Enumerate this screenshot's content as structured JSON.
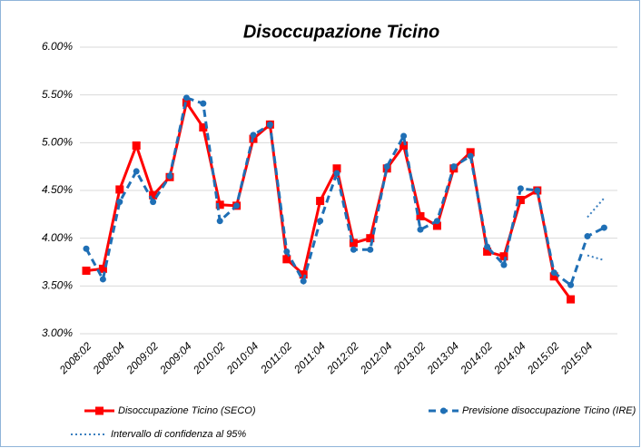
{
  "chart_data": {
    "type": "line",
    "title": "Disoccupazione Ticino",
    "categories": [
      "2008:02",
      null,
      "2008:04",
      null,
      "2009:02",
      null,
      "2009:04",
      null,
      "2010:02",
      null,
      "2010:04",
      null,
      "2011:02",
      null,
      "2011:04",
      null,
      "2012:02",
      null,
      "2012:04",
      null,
      "2013:02",
      null,
      "2013:04",
      null,
      "2014:02",
      null,
      "2014:04",
      null,
      "2015:02",
      null,
      "2015:04",
      null
    ],
    "series": [
      {
        "name": "Disoccupazione Ticino (SECO)",
        "color": "#ff0000",
        "style": "solid",
        "marker": "square",
        "values": [
          3.66,
          3.68,
          4.51,
          4.97,
          4.45,
          4.64,
          5.42,
          5.16,
          4.35,
          4.34,
          5.04,
          5.19,
          3.78,
          3.62,
          4.39,
          4.73,
          3.95,
          4.0,
          4.73,
          4.97,
          4.23,
          4.13,
          4.73,
          4.9,
          3.86,
          3.81,
          4.4,
          4.5,
          3.6,
          3.36,
          null,
          null
        ]
      },
      {
        "name": "Previsione disoccupazione Ticino (IRE)",
        "color": "#1f6fb5",
        "style": "dashed",
        "marker": "circle",
        "values": [
          3.89,
          3.57,
          4.38,
          4.7,
          4.38,
          4.65,
          5.47,
          5.41,
          4.18,
          4.34,
          5.08,
          5.19,
          3.86,
          3.55,
          4.18,
          4.68,
          3.88,
          3.88,
          4.75,
          5.07,
          4.09,
          4.18,
          4.75,
          4.86,
          3.91,
          3.72,
          4.52,
          4.5,
          3.64,
          3.51,
          4.02,
          4.11
        ]
      },
      {
        "name": "Intervallo di confidenza al 95%",
        "color": "#3a7fbf",
        "style": "dotted",
        "marker": "none",
        "upper": [
          null,
          null,
          null,
          null,
          null,
          null,
          null,
          null,
          null,
          null,
          null,
          null,
          null,
          null,
          null,
          null,
          null,
          null,
          null,
          null,
          null,
          null,
          null,
          null,
          null,
          null,
          null,
          null,
          null,
          null,
          4.22,
          4.42
        ],
        "lower": [
          null,
          null,
          null,
          null,
          null,
          null,
          null,
          null,
          null,
          null,
          null,
          null,
          null,
          null,
          null,
          null,
          null,
          null,
          null,
          null,
          null,
          null,
          null,
          null,
          null,
          null,
          null,
          null,
          null,
          null,
          3.82,
          3.77
        ]
      }
    ],
    "ylim": [
      3,
      6
    ],
    "yticks": [
      {
        "value": 3,
        "label": "3.00%"
      },
      {
        "value": 3.5,
        "label": "3.50%"
      },
      {
        "value": 4,
        "label": "4.00%"
      },
      {
        "value": 4.5,
        "label": "4.50%"
      },
      {
        "value": 5,
        "label": "5.00%"
      },
      {
        "value": 5.5,
        "label": "5.50%"
      },
      {
        "value": 6,
        "label": "6.00%"
      }
    ],
    "grid": true
  }
}
